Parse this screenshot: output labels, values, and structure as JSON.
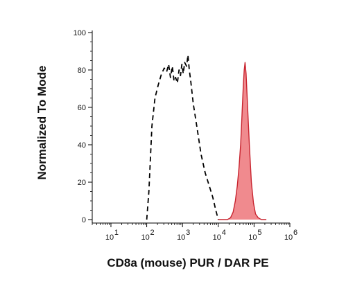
{
  "chart_data": {
    "type": "area",
    "title": "",
    "xlabel": "CD8a (mouse) PUR / DAR PE",
    "ylabel": "Normalized To Mode",
    "x_scale": "log",
    "xlim": [
      3,
      1000000
    ],
    "ylim": [
      0,
      100
    ],
    "x_ticks": [
      {
        "value": 10,
        "base": "10",
        "exp": "1"
      },
      {
        "value": 100,
        "base": "10",
        "exp": "2"
      },
      {
        "value": 1000,
        "base": "10",
        "exp": "3"
      },
      {
        "value": 10000,
        "base": "10",
        "exp": "4"
      },
      {
        "value": 100000,
        "base": "10",
        "exp": "5"
      },
      {
        "value": 1000000,
        "base": "10",
        "exp": "6"
      }
    ],
    "y_ticks": [
      "0",
      "20",
      "40",
      "60",
      "80",
      "100"
    ],
    "y_tick_values": [
      0,
      20,
      40,
      60,
      80,
      100
    ],
    "grid": false,
    "legend": "none",
    "series": [
      {
        "style": "dashed",
        "color": "#000000",
        "filled": false,
        "x": [
          100,
          115,
          140,
          170,
          210,
          260,
          310,
          360,
          410,
          460,
          520,
          580,
          640,
          720,
          800,
          880,
          960,
          1050,
          1150,
          1300,
          1420,
          1550,
          1700,
          2000,
          2600,
          3300,
          4300,
          5600,
          7000,
          8500,
          10000
        ],
        "y": [
          0,
          15,
          50,
          65,
          72,
          78,
          81,
          79,
          83,
          76,
          82,
          74,
          76,
          73,
          80,
          77,
          83,
          78,
          84,
          82,
          88,
          80,
          74,
          62,
          48,
          35,
          25,
          18,
          12,
          5,
          0
        ]
      },
      {
        "style": "solid",
        "color": "#c8242f",
        "fill": "#f08a8e",
        "filled": true,
        "x": [
          10000,
          18000,
          22000,
          26000,
          30000,
          34000,
          38000,
          42000,
          46000,
          50000,
          53000,
          56000,
          60000,
          66000,
          74000,
          84000,
          96000,
          110000,
          130000,
          160000,
          220000
        ],
        "y": [
          0,
          0,
          1,
          4,
          10,
          18,
          28,
          40,
          56,
          72,
          80,
          84,
          78,
          60,
          40,
          20,
          9,
          3,
          1,
          0,
          0
        ]
      }
    ]
  }
}
